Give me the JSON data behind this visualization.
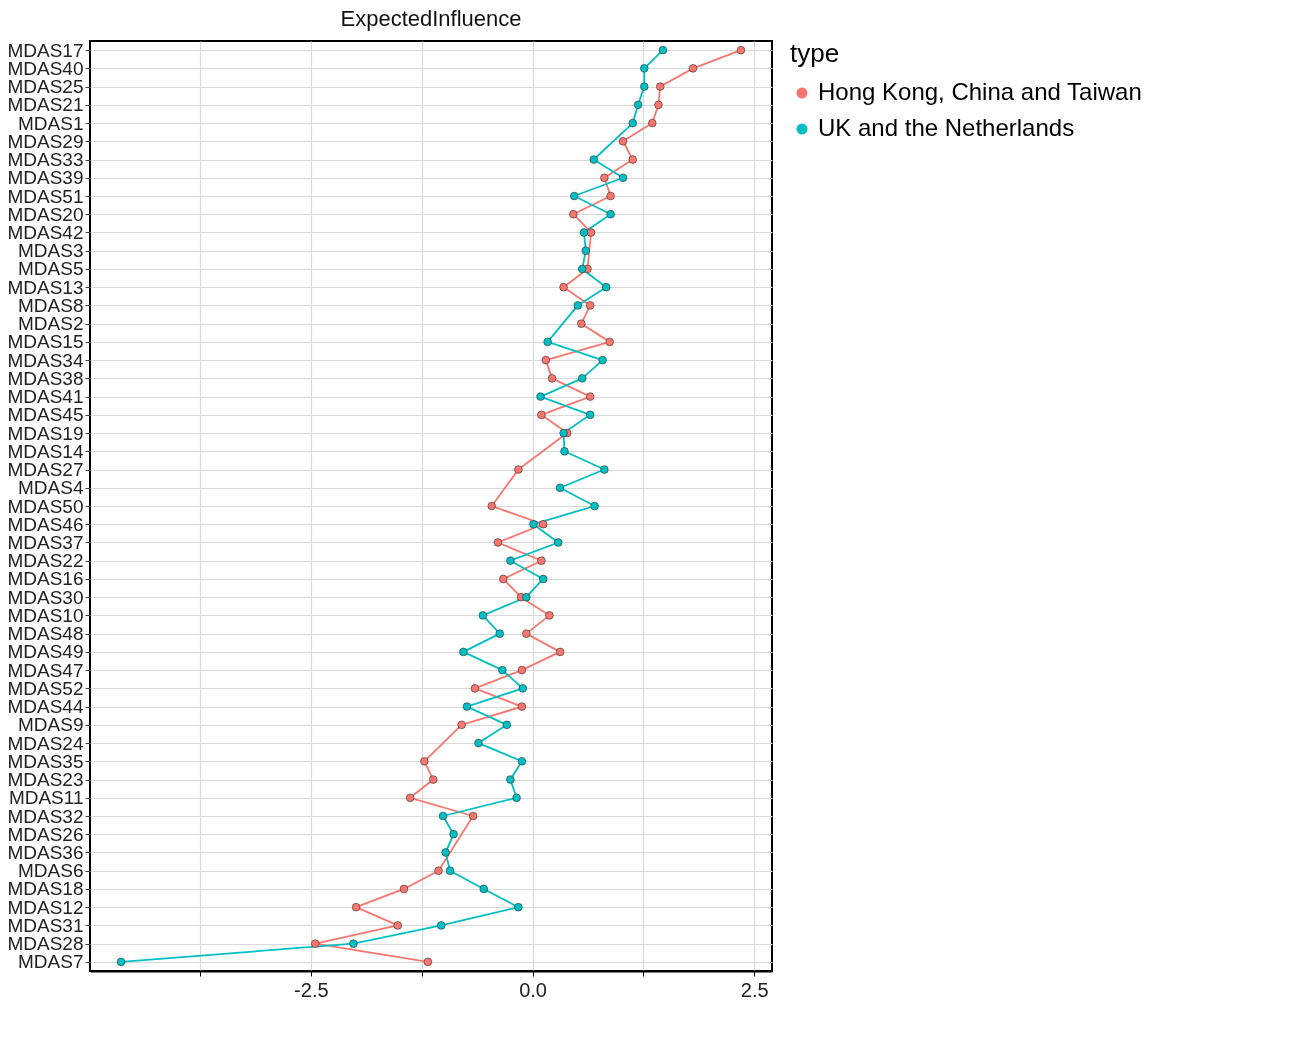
{
  "chart_data": {
    "type": "line",
    "title": "ExpectedInfluence",
    "orientation": "horizontal",
    "legend_title": "type",
    "legend": "right",
    "grid": true,
    "marker": "circle",
    "categories": [
      "MDAS17",
      "MDAS40",
      "MDAS25",
      "MDAS21",
      "MDAS1",
      "MDAS29",
      "MDAS33",
      "MDAS39",
      "MDAS51",
      "MDAS20",
      "MDAS42",
      "MDAS3",
      "MDAS5",
      "MDAS13",
      "MDAS8",
      "MDAS2",
      "MDAS15",
      "MDAS34",
      "MDAS38",
      "MDAS41",
      "MDAS45",
      "MDAS19",
      "MDAS14",
      "MDAS27",
      "MDAS4",
      "MDAS50",
      "MDAS46",
      "MDAS37",
      "MDAS22",
      "MDAS16",
      "MDAS30",
      "MDAS10",
      "MDAS48",
      "MDAS49",
      "MDAS47",
      "MDAS52",
      "MDAS44",
      "MDAS9",
      "MDAS24",
      "MDAS35",
      "MDAS23",
      "MDAS11",
      "MDAS32",
      "MDAS26",
      "MDAS36",
      "MDAS6",
      "MDAS18",
      "MDAS12",
      "MDAS31",
      "MDAS28",
      "MDAS7"
    ],
    "xlim": [
      -4.99,
      2.7
    ],
    "xticks": [
      {
        "value": -3.75,
        "label": null
      },
      -2.5,
      {
        "value": -1.25,
        "label": null
      },
      {
        "value": 0,
        "label": "0.0"
      },
      {
        "value": 1.25,
        "label": null
      },
      2.5
    ],
    "series": [
      {
        "name": "Hong Kong, China and Taiwan",
        "color": "#f8766d",
        "values": [
          2.35,
          1.81,
          1.44,
          1.42,
          1.35,
          1.02,
          1.13,
          0.81,
          0.88,
          0.46,
          0.66,
          null,
          0.62,
          0.35,
          0.65,
          0.55,
          0.87,
          0.15,
          0.22,
          0.65,
          0.1,
          0.39,
          null,
          -0.16,
          null,
          -0.46,
          0.12,
          -0.39,
          0.1,
          -0.33,
          -0.13,
          0.19,
          -0.07,
          0.31,
          -0.12,
          -0.65,
          -0.12,
          -0.8,
          null,
          -1.22,
          -1.12,
          -1.38,
          -0.67,
          null,
          null,
          -1.06,
          -1.45,
          -1.99,
          -1.52,
          -2.45,
          -1.18
        ]
      },
      {
        "name": "UK and the Netherlands",
        "color": "#00bfc4",
        "values": [
          1.47,
          1.26,
          1.26,
          1.19,
          1.13,
          null,
          0.69,
          1.02,
          0.47,
          0.88,
          0.58,
          0.6,
          0.56,
          0.83,
          0.51,
          null,
          0.17,
          0.79,
          0.56,
          0.09,
          0.65,
          0.35,
          0.36,
          0.81,
          0.31,
          0.7,
          0.01,
          0.29,
          -0.25,
          0.12,
          -0.07,
          -0.56,
          -0.37,
          -0.78,
          -0.34,
          -0.11,
          -0.74,
          -0.29,
          -0.61,
          -0.12,
          -0.25,
          -0.18,
          -1.01,
          -0.89,
          -0.98,
          -0.93,
          -0.55,
          -0.16,
          -1.03,
          -2.02,
          -4.64
        ]
      }
    ]
  }
}
